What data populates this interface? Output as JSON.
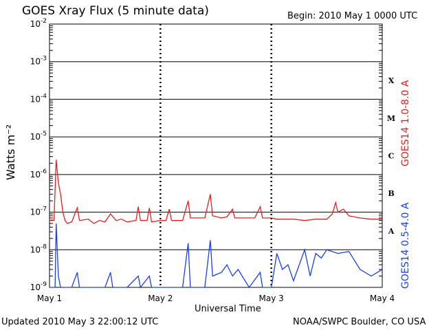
{
  "header": {
    "title": "GOES Xray Flux (5 minute data)",
    "begin": "Begin:  2010 May 1 0000 UTC"
  },
  "footer": {
    "updated": "Updated 2010 May  3 22:00:12 UTC",
    "credit": "NOAA/SWPC Boulder, CO USA"
  },
  "chart_data": {
    "type": "line",
    "title": "GOES Xray Flux (5 minute data)",
    "xlabel": "Universal Time",
    "ylabel": "Watts m⁻²",
    "yscale": "log",
    "ylim": [
      1e-09,
      0.01
    ],
    "xlim": [
      0,
      3
    ],
    "x_ticks": [
      {
        "label": "May 1",
        "value": 0
      },
      {
        "label": "May 2",
        "value": 1
      },
      {
        "label": "May 3",
        "value": 2
      },
      {
        "label": "May 4",
        "value": 3
      }
    ],
    "y_ticks": [
      {
        "base": "10",
        "exp": "-9",
        "value": 1e-09
      },
      {
        "base": "10",
        "exp": "-8",
        "value": 1e-08
      },
      {
        "base": "10",
        "exp": "-7",
        "value": 1e-07
      },
      {
        "base": "10",
        "exp": "-6",
        "value": 1e-06
      },
      {
        "base": "10",
        "exp": "-5",
        "value": 1e-05
      },
      {
        "base": "10",
        "exp": "-4",
        "value": 0.0001
      },
      {
        "base": "10",
        "exp": "-3",
        "value": 0.001
      },
      {
        "base": "10",
        "exp": "-2",
        "value": 0.01
      }
    ],
    "flare_classes": [
      {
        "label": "A",
        "band_min": 1e-08,
        "band_max": 1e-07
      },
      {
        "label": "B",
        "band_min": 1e-07,
        "band_max": 1e-06
      },
      {
        "label": "C",
        "band_min": 1e-06,
        "band_max": 1e-05
      },
      {
        "label": "M",
        "band_min": 1e-05,
        "band_max": 0.0001
      },
      {
        "label": "X",
        "band_min": 0.0001,
        "band_max": 0.001
      }
    ],
    "grid": true,
    "series": [
      {
        "name": "GOES14 1.0-8.0 A",
        "color": "#e02020",
        "points": [
          [
            0,
            6e-08
          ],
          [
            0.02,
            6.2e-08
          ],
          [
            0.04,
            6e-08
          ],
          [
            0.06,
            2.5e-06
          ],
          [
            0.07,
            1.2e-06
          ],
          [
            0.08,
            6e-07
          ],
          [
            0.1,
            3e-07
          ],
          [
            0.12,
            1e-07
          ],
          [
            0.14,
            6e-08
          ],
          [
            0.16,
            5e-08
          ],
          [
            0.2,
            5.5e-08
          ],
          [
            0.25,
            1.3e-07
          ],
          [
            0.27,
            6e-08
          ],
          [
            0.35,
            6.5e-08
          ],
          [
            0.4,
            5e-08
          ],
          [
            0.45,
            6e-08
          ],
          [
            0.5,
            5.5e-08
          ],
          [
            0.55,
            9e-08
          ],
          [
            0.6,
            6e-08
          ],
          [
            0.65,
            6.5e-08
          ],
          [
            0.7,
            5.5e-08
          ],
          [
            0.78,
            6e-08
          ],
          [
            0.8,
            1.4e-07
          ],
          [
            0.82,
            6e-08
          ],
          [
            0.88,
            6e-08
          ],
          [
            0.9,
            1.3e-07
          ],
          [
            0.92,
            5.5e-08
          ],
          [
            1.0,
            6e-08
          ],
          [
            1.05,
            6e-08
          ],
          [
            1.08,
            1.2e-07
          ],
          [
            1.1,
            6e-08
          ],
          [
            1.2,
            6e-08
          ],
          [
            1.25,
            2e-07
          ],
          [
            1.27,
            7e-08
          ],
          [
            1.35,
            7e-08
          ],
          [
            1.4,
            7e-08
          ],
          [
            1.45,
            3e-07
          ],
          [
            1.47,
            8e-08
          ],
          [
            1.55,
            7e-08
          ],
          [
            1.6,
            7.5e-08
          ],
          [
            1.65,
            1.2e-07
          ],
          [
            1.67,
            7e-08
          ],
          [
            1.75,
            7e-08
          ],
          [
            1.8,
            7e-08
          ],
          [
            1.85,
            7e-08
          ],
          [
            1.9,
            1.4e-07
          ],
          [
            1.92,
            7e-08
          ],
          [
            2.0,
            7e-08
          ],
          [
            2.05,
            6.5e-08
          ],
          [
            2.1,
            6.5e-08
          ],
          [
            2.2,
            6.5e-08
          ],
          [
            2.3,
            6e-08
          ],
          [
            2.4,
            6.5e-08
          ],
          [
            2.5,
            6.5e-08
          ],
          [
            2.55,
            9e-08
          ],
          [
            2.58,
            1.8e-07
          ],
          [
            2.6,
            1e-07
          ],
          [
            2.65,
            1.2e-07
          ],
          [
            2.7,
            8e-08
          ],
          [
            2.8,
            7e-08
          ],
          [
            2.9,
            6.5e-08
          ],
          [
            3.0,
            6.5e-08
          ]
        ]
      },
      {
        "name": "GOES14 0.5-4.0 A",
        "color": "#1a3ee8",
        "points": [
          [
            0,
            1e-09
          ],
          [
            0.02,
            1e-09
          ],
          [
            0.05,
            1e-09
          ],
          [
            0.06,
            5e-08
          ],
          [
            0.07,
            1e-08
          ],
          [
            0.08,
            2e-09
          ],
          [
            0.1,
            1e-09
          ],
          [
            0.2,
            1e-09
          ],
          [
            0.25,
            2.5e-09
          ],
          [
            0.27,
            1e-09
          ],
          [
            0.4,
            1e-09
          ],
          [
            0.45,
            1e-09
          ],
          [
            0.5,
            1e-09
          ],
          [
            0.55,
            2.5e-09
          ],
          [
            0.57,
            1e-09
          ],
          [
            0.7,
            1e-09
          ],
          [
            0.8,
            2e-09
          ],
          [
            0.82,
            1e-09
          ],
          [
            0.9,
            2e-09
          ],
          [
            0.92,
            1e-09
          ],
          [
            1.0,
            1e-09
          ],
          [
            1.1,
            1e-09
          ],
          [
            1.2,
            1e-09
          ],
          [
            1.25,
            1.5e-08
          ],
          [
            1.27,
            1e-09
          ],
          [
            1.35,
            1e-09
          ],
          [
            1.4,
            1e-09
          ],
          [
            1.45,
            1.8e-08
          ],
          [
            1.47,
            2e-09
          ],
          [
            1.55,
            2.5e-09
          ],
          [
            1.6,
            4e-09
          ],
          [
            1.65,
            2e-09
          ],
          [
            1.7,
            3e-09
          ],
          [
            1.8,
            1e-09
          ],
          [
            1.9,
            2.5e-09
          ],
          [
            1.92,
            1e-09
          ],
          [
            2.0,
            1e-09
          ],
          [
            2.05,
            8e-09
          ],
          [
            2.1,
            3e-09
          ],
          [
            2.15,
            4e-09
          ],
          [
            2.2,
            1.5e-09
          ],
          [
            2.3,
            1e-08
          ],
          [
            2.35,
            2e-09
          ],
          [
            2.4,
            8e-09
          ],
          [
            2.45,
            6e-09
          ],
          [
            2.5,
            1e-08
          ],
          [
            2.6,
            8e-09
          ],
          [
            2.7,
            9e-09
          ],
          [
            2.8,
            3e-09
          ],
          [
            2.9,
            2e-09
          ],
          [
            3.0,
            3e-09
          ]
        ]
      }
    ]
  }
}
